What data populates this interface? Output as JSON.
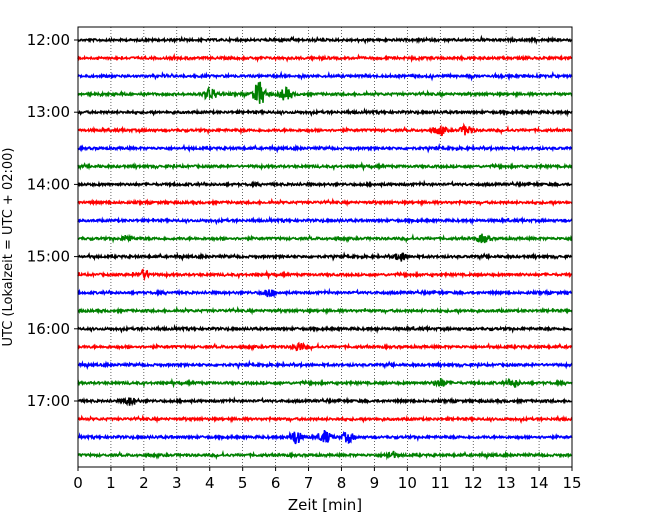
{
  "chart_data": {
    "type": "line",
    "xlabel": "Zeit  [min]",
    "ylabel": "UTC (Lokalzeit = UTC + 02:00)",
    "xlim": [
      0,
      15
    ],
    "x_ticks": [
      "0",
      "1",
      "2",
      "3",
      "4",
      "5",
      "6",
      "7",
      "8",
      "9",
      "10",
      "11",
      "12",
      "13",
      "14",
      "15"
    ],
    "grid": "vertical dotted at each minute",
    "y_tick_labels": [
      {
        "row": 0,
        "label": "12:00"
      },
      {
        "row": 4,
        "label": "13:00"
      },
      {
        "row": 8,
        "label": "14:00"
      },
      {
        "row": 12,
        "label": "15:00"
      },
      {
        "row": 16,
        "label": "16:00"
      },
      {
        "row": 20,
        "label": "17:00"
      }
    ],
    "color_cycle": [
      "#000000",
      "#ff0000",
      "#0000ff",
      "#008000"
    ],
    "rows": [
      {
        "start": "12:00",
        "color": "#000000",
        "events": []
      },
      {
        "start": "12:15",
        "color": "#ff0000",
        "events": []
      },
      {
        "start": "12:30",
        "color": "#0000ff",
        "events": []
      },
      {
        "start": "12:45",
        "color": "#008000",
        "events": [
          {
            "t": 4.0,
            "amp": 6
          },
          {
            "t": 5.5,
            "amp": 12
          },
          {
            "t": 6.3,
            "amp": 6
          }
        ]
      },
      {
        "start": "13:00",
        "color": "#000000",
        "events": []
      },
      {
        "start": "13:15",
        "color": "#ff0000",
        "events": [
          {
            "t": 11.0,
            "amp": 4
          },
          {
            "t": 11.8,
            "amp": 5
          }
        ]
      },
      {
        "start": "13:30",
        "color": "#0000ff",
        "events": []
      },
      {
        "start": "13:45",
        "color": "#008000",
        "events": []
      },
      {
        "start": "14:00",
        "color": "#000000",
        "events": []
      },
      {
        "start": "14:15",
        "color": "#ff0000",
        "events": []
      },
      {
        "start": "14:30",
        "color": "#0000ff",
        "events": []
      },
      {
        "start": "14:45",
        "color": "#008000",
        "events": [
          {
            "t": 1.5,
            "amp": 3
          },
          {
            "t": 12.3,
            "amp": 4
          }
        ]
      },
      {
        "start": "15:00",
        "color": "#000000",
        "events": [
          {
            "t": 9.8,
            "amp": 4
          }
        ]
      },
      {
        "start": "15:15",
        "color": "#ff0000",
        "events": [
          {
            "t": 2.0,
            "amp": 4
          }
        ]
      },
      {
        "start": "15:30",
        "color": "#0000ff",
        "events": [
          {
            "t": 5.8,
            "amp": 4
          }
        ]
      },
      {
        "start": "15:45",
        "color": "#008000",
        "events": []
      },
      {
        "start": "16:00",
        "color": "#000000",
        "events": []
      },
      {
        "start": "16:15",
        "color": "#ff0000",
        "events": [
          {
            "t": 6.7,
            "amp": 4
          }
        ]
      },
      {
        "start": "16:30",
        "color": "#0000ff",
        "events": []
      },
      {
        "start": "16:45",
        "color": "#008000",
        "events": [
          {
            "t": 11.0,
            "amp": 4
          },
          {
            "t": 13.2,
            "amp": 4
          }
        ]
      },
      {
        "start": "17:00",
        "color": "#000000",
        "events": [
          {
            "t": 1.6,
            "amp": 4
          }
        ]
      },
      {
        "start": "17:15",
        "color": "#ff0000",
        "events": []
      },
      {
        "start": "17:30",
        "color": "#0000ff",
        "events": [
          {
            "t": 6.6,
            "amp": 7
          },
          {
            "t": 7.5,
            "amp": 6
          },
          {
            "t": 8.2,
            "amp": 5
          }
        ]
      },
      {
        "start": "17:45",
        "color": "#008000",
        "events": [
          {
            "t": 9.5,
            "amp": 3
          }
        ]
      }
    ]
  }
}
